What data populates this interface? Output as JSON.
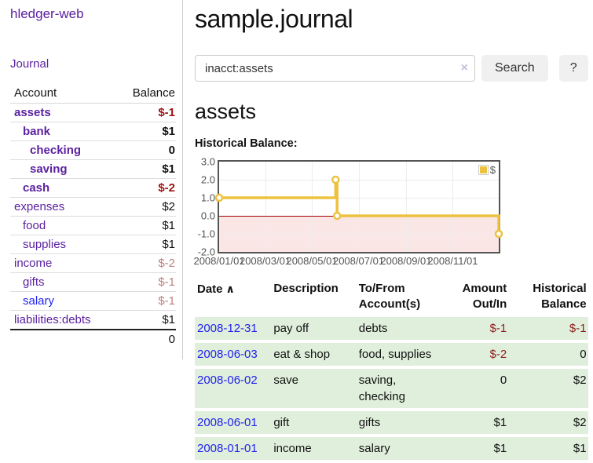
{
  "colors": {
    "link_purple": "#5b21a0",
    "link_blue": "#2222ee",
    "negative_dark": "#a01414",
    "negative_light": "#c17f7f",
    "register_negative": "#8f1d1d",
    "row_green": "#e0efdc",
    "chart_line": "#edc240",
    "chart_zero_line": "#a00000"
  },
  "sidebar": {
    "app_title": "hledger-web",
    "journal_link": "Journal",
    "headers": {
      "account": "Account",
      "balance": "Balance"
    },
    "accounts": [
      {
        "name": "assets",
        "depth": 1,
        "bold": true,
        "link": "purple",
        "balance": "$-1",
        "balance_style": "neg-bold"
      },
      {
        "name": "bank",
        "depth": 2,
        "bold": true,
        "link": "purple",
        "balance": "$1",
        "balance_style": "pos-bold"
      },
      {
        "name": "checking",
        "depth": 3,
        "bold": true,
        "link": "purple",
        "balance": "0",
        "balance_style": "pos-bold"
      },
      {
        "name": "saving",
        "depth": 3,
        "bold": true,
        "link": "purple",
        "balance": "$1",
        "balance_style": "pos-bold"
      },
      {
        "name": "cash",
        "depth": 2,
        "bold": true,
        "link": "purple",
        "balance": "$-2",
        "balance_style": "neg-bold"
      },
      {
        "name": "expenses",
        "depth": 1,
        "bold": false,
        "link": "purple",
        "balance": "$2",
        "balance_style": "plain"
      },
      {
        "name": "food",
        "depth": 2,
        "bold": false,
        "link": "purple",
        "balance": "$1",
        "balance_style": "plain"
      },
      {
        "name": "supplies",
        "depth": 2,
        "bold": false,
        "link": "purple",
        "balance": "$1",
        "balance_style": "plain"
      },
      {
        "name": "income",
        "depth": 1,
        "bold": false,
        "link": "purple",
        "balance": "$-2",
        "balance_style": "neg-light"
      },
      {
        "name": "gifts",
        "depth": 2,
        "bold": false,
        "link": "purple",
        "balance": "$-1",
        "balance_style": "neg-light"
      },
      {
        "name": "salary",
        "depth": 2,
        "bold": false,
        "link": "blue",
        "balance": "$-1",
        "balance_style": "neg-light"
      },
      {
        "name": "liabilities:debts",
        "depth": 1,
        "bold": false,
        "link": "purple",
        "balance": "$1",
        "balance_style": "plain"
      }
    ],
    "total": "0"
  },
  "main": {
    "title": "sample.journal",
    "search": {
      "value": "inacct:assets",
      "clear_icon": "×",
      "search_button": "Search",
      "help_button": "?"
    },
    "account_heading": "assets",
    "chart_label": "Historical Balance:"
  },
  "chart_data": {
    "type": "line",
    "step": true,
    "title": "Historical Balance",
    "legend": [
      {
        "label": "$",
        "color": "#edc240"
      }
    ],
    "legend_position": "top-right",
    "x_start": "2008-01-01",
    "x_end": "2008-12-31",
    "x": [
      "2008-01-01",
      "2008-06-01",
      "2008-06-02",
      "2008-06-03",
      "2008-12-31"
    ],
    "values": [
      1,
      2,
      2,
      0,
      -1
    ],
    "ylim": [
      -2,
      3
    ],
    "yticks": [
      {
        "label": "3.0",
        "value": 3
      },
      {
        "label": "2.0",
        "value": 2
      },
      {
        "label": "1.0",
        "value": 1
      },
      {
        "label": "0.0",
        "value": 0
      },
      {
        "label": "-1.0",
        "value": -1
      },
      {
        "label": "-2.0",
        "value": -2
      }
    ],
    "xticks": [
      {
        "label": "2008/01/01",
        "date": "2008-01-01"
      },
      {
        "label": "2008/03/01",
        "date": "2008-03-01"
      },
      {
        "label": "2008/05/01",
        "date": "2008-05-01"
      },
      {
        "label": "2008/07/01",
        "date": "2008-07-01"
      },
      {
        "label": "2008/09/01",
        "date": "2008-09-01"
      },
      {
        "label": "2008/11/01",
        "date": "2008-11-01"
      }
    ],
    "grid": true,
    "negative_region_shaded": true
  },
  "register": {
    "headers": {
      "date": "Date",
      "sort_caret": "∧",
      "description": "Description",
      "accounts": "To/From Account(s)",
      "amount": "Amount Out/In",
      "balance": "Historical Balance"
    },
    "rows": [
      {
        "date": "2008-12-31",
        "description": "pay off",
        "accounts": "debts",
        "amount": "$-1",
        "amount_neg": true,
        "balance": "$-1",
        "balance_neg": true
      },
      {
        "date": "2008-06-03",
        "description": "eat & shop",
        "accounts": "food, supplies",
        "amount": "$-2",
        "amount_neg": true,
        "balance": "0",
        "balance_neg": false
      },
      {
        "date": "2008-06-02",
        "description": "save",
        "accounts": "saving, checking",
        "amount": "0",
        "amount_neg": false,
        "balance": "$2",
        "balance_neg": false
      },
      {
        "date": "2008-06-01",
        "description": "gift",
        "accounts": "gifts",
        "amount": "$1",
        "amount_neg": false,
        "balance": "$2",
        "balance_neg": false
      },
      {
        "date": "2008-01-01",
        "description": "income",
        "accounts": "salary",
        "amount": "$1",
        "amount_neg": false,
        "balance": "$1",
        "balance_neg": false
      }
    ]
  }
}
